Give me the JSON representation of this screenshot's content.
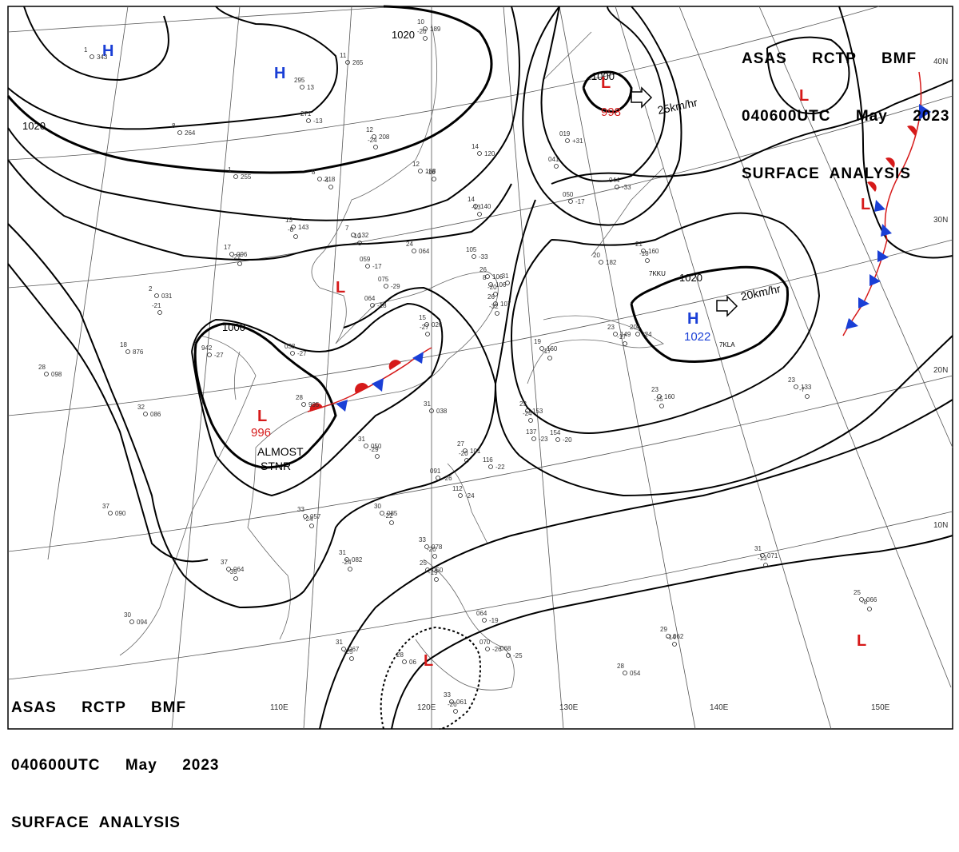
{
  "header_top_right": {
    "line1": "ASAS     RCTP     BMF",
    "line2": "040600UTC     May     2023",
    "line3": "SURFACE  ANALYSIS"
  },
  "header_bottom_left": {
    "line1": "ASAS     RCTP     BMF",
    "line2": "040600UTC     May     2023",
    "line3": "SURFACE  ANALYSIS"
  },
  "longitudes": [
    "110E",
    "120E",
    "130E",
    "140E",
    "150E"
  ],
  "latitudes": [
    "40N",
    "30N",
    "20N",
    "10N"
  ],
  "isobars": [
    "1020",
    "1020",
    "1000",
    "1000",
    "1020"
  ],
  "pressure_systems": [
    {
      "type": "H",
      "color": "#1a3fd6",
      "value": ""
    },
    {
      "type": "H",
      "color": "#1a3fd6",
      "value": ""
    },
    {
      "type": "L",
      "color": "#d61a1a",
      "value": "998"
    },
    {
      "type": "L",
      "color": "#d61a1a",
      "value": ""
    },
    {
      "type": "L",
      "color": "#d61a1a",
      "value": ""
    },
    {
      "type": "L",
      "color": "#d61a1a",
      "value": "996"
    },
    {
      "type": "H",
      "color": "#1a3fd6",
      "value": "1022"
    },
    {
      "type": "L",
      "color": "#d61a1a",
      "value": ""
    },
    {
      "type": "L",
      "color": "#d61a1a",
      "value": ""
    },
    {
      "type": "L",
      "color": "#d61a1a",
      "value": ""
    }
  ],
  "movements": [
    "25km/hr",
    "20km/hr"
  ],
  "annotations": [
    "ALMOST",
    "STNR",
    "7KKU",
    "7KLA"
  ],
  "station_plots": [
    [
      "1",
      "343"
    ],
    [
      "11",
      "265"
    ],
    [
      "295",
      "13"
    ],
    [
      "271",
      "-13"
    ],
    [
      "8",
      "264"
    ],
    [
      "12",
      "208"
    ],
    [
      "-24",
      ""
    ],
    [
      "1",
      "255"
    ],
    [
      "8",
      "218"
    ],
    [
      "-4",
      ""
    ],
    [
      "10",
      "189"
    ],
    [
      "-20",
      ""
    ],
    [
      "14",
      "120"
    ],
    [
      "12",
      "188"
    ],
    [
      "-16",
      ""
    ],
    [
      "14",
      "140"
    ],
    [
      "-13",
      ""
    ],
    [
      "13",
      "143"
    ],
    [
      "-8",
      ""
    ],
    [
      "7",
      "132"
    ],
    [
      "-10",
      ""
    ],
    [
      "24",
      "064"
    ],
    [
      "17",
      "096"
    ],
    [
      "-22",
      ""
    ],
    [
      "059",
      "-17"
    ],
    [
      "075",
      "-29"
    ],
    [
      "105",
      "-33"
    ],
    [
      "26",
      "106"
    ],
    [
      "-31",
      ""
    ],
    [
      "064",
      "-18"
    ],
    [
      "2",
      "031"
    ],
    [
      "-21",
      ""
    ],
    [
      "18",
      "876"
    ],
    [
      "942",
      "-27"
    ],
    [
      "038",
      "-27"
    ],
    [
      "15",
      "026"
    ],
    [
      "-27",
      ""
    ],
    [
      "28",
      "098"
    ],
    [
      "32",
      "086"
    ],
    [
      "28",
      "995"
    ],
    [
      "31",
      "038"
    ],
    [
      "31",
      "050"
    ],
    [
      "-29",
      ""
    ],
    [
      "26",
      "107"
    ],
    [
      "-32",
      ""
    ],
    [
      "27",
      "101"
    ],
    [
      "-20",
      ""
    ],
    [
      "116",
      "-22"
    ],
    [
      "091",
      "-26"
    ],
    [
      "112",
      "-24"
    ],
    [
      "30",
      "085"
    ],
    [
      "-22",
      ""
    ],
    [
      "37",
      "090"
    ],
    [
      "33",
      "057"
    ],
    [
      "-24",
      ""
    ],
    [
      "37",
      "064"
    ],
    [
      "-35",
      ""
    ],
    [
      "31",
      "082"
    ],
    [
      "-24",
      ""
    ],
    [
      "33",
      "078"
    ],
    [
      "-20",
      ""
    ],
    [
      "25",
      "050"
    ],
    [
      "-19",
      ""
    ],
    [
      "30",
      "094"
    ],
    [
      "31",
      "067"
    ],
    [
      "-25",
      ""
    ],
    [
      "28",
      "06"
    ],
    [
      "064",
      "-19"
    ],
    [
      "070",
      "-26"
    ],
    [
      "068",
      "-25"
    ],
    [
      "33",
      "061"
    ],
    [
      "-26",
      ""
    ],
    [
      "19",
      "160"
    ],
    [
      "-17",
      ""
    ],
    [
      "204",
      "-24"
    ],
    [
      "20",
      "182"
    ],
    [
      "21",
      "160"
    ],
    [
      "-18",
      ""
    ],
    [
      "019",
      "+31"
    ],
    [
      "041",
      ""
    ],
    [
      "050",
      "-17"
    ],
    [
      "044",
      "-33"
    ],
    [
      "23",
      "153"
    ],
    [
      "-24",
      ""
    ],
    [
      "137",
      "-23"
    ],
    [
      "154",
      "-20"
    ],
    [
      "23",
      "160"
    ],
    [
      "-15",
      ""
    ],
    [
      "23",
      "133"
    ],
    [
      "-7",
      ""
    ],
    [
      "31",
      "071"
    ],
    [
      "-13",
      ""
    ],
    [
      "25",
      "066"
    ],
    [
      "-8",
      ""
    ],
    [
      "29",
      "062"
    ],
    [
      "-14",
      ""
    ],
    [
      "28",
      "054"
    ],
    [
      "23",
      "149"
    ],
    [
      "-17",
      ""
    ],
    [
      "8",
      "106"
    ],
    [
      "-20",
      ""
    ]
  ]
}
